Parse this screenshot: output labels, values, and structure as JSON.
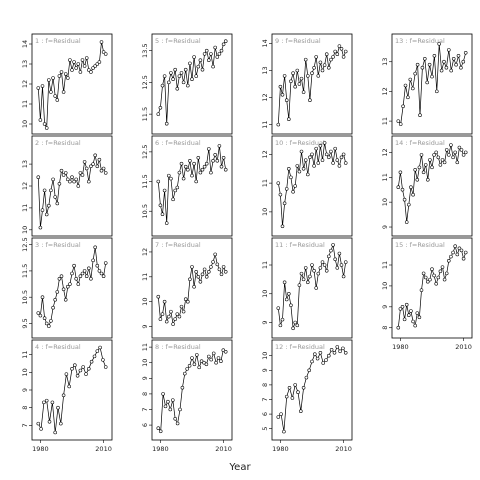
{
  "chart_data": {
    "type": "line",
    "xlabel": "Year",
    "x_ticks": [
      1980,
      2010
    ],
    "x_range": [
      1976,
      2014
    ],
    "strip_label": "f=Residual",
    "layout": {
      "rows": 4,
      "columns": 4,
      "shared_x": true
    },
    "panels": [
      {
        "label": "1 : f=Residual",
        "yticks": [
          10,
          11,
          12,
          13,
          14
        ],
        "ylim": [
          9.7,
          14.3
        ],
        "values": [
          11.8,
          10.2,
          11.9,
          10.0,
          9.8,
          12.2,
          11.6,
          12.3,
          11.4,
          11.2,
          12.4,
          12.6,
          11.6,
          12.5,
          12.3,
          13.2,
          12.7,
          13.1,
          12.8,
          13.0,
          12.6,
          13.2,
          12.9,
          13.3,
          12.7,
          12.6,
          12.8,
          12.9,
          13.0,
          13.1,
          14.1,
          13.6,
          13.5
        ]
      },
      {
        "label": "2 : f=Residual",
        "yticks": [
          10,
          11,
          12,
          13
        ],
        "ylim": [
          9.9,
          14.1
        ],
        "values": [
          12.4,
          10.1,
          10.9,
          11.8,
          10.7,
          11.1,
          11.8,
          12.3,
          11.5,
          11.2,
          12.1,
          12.7,
          12.5,
          12.6,
          12.3,
          12.2,
          12.4,
          12.2,
          12.3,
          12.0,
          12.6,
          12.5,
          13.1,
          12.8,
          12.2,
          12.9,
          13.0,
          13.4,
          12.9,
          13.2,
          12.7,
          12.8,
          12.6
        ]
      },
      {
        "label": "3 : f=Residual",
        "yticks": [
          9.5,
          10.5,
          11.5,
          12.5
        ],
        "ylim": [
          9.1,
          12.6
        ],
        "values": [
          9.9,
          9.8,
          10.5,
          9.7,
          9.5,
          9.4,
          9.6,
          10.1,
          10.4,
          10.7,
          11.2,
          11.3,
          10.8,
          10.4,
          10.9,
          11.0,
          11.4,
          11.7,
          11.2,
          11.0,
          11.3,
          11.4,
          11.5,
          11.3,
          11.6,
          11.2,
          11.9,
          12.4,
          11.7,
          11.5,
          11.4,
          11.3,
          11.8
        ]
      },
      {
        "label": "4 : f=Residual",
        "yticks": [
          7,
          8,
          9,
          10,
          11
        ],
        "ylim": [
          6.4,
          11.6
        ],
        "values": [
          7.1,
          6.8,
          8.3,
          8.4,
          7.2,
          8.3,
          6.6,
          8.0,
          7.1,
          8.7,
          9.9,
          9.2,
          10.2,
          10.4,
          9.8,
          10.1,
          10.3,
          9.9,
          10.2,
          10.6,
          10.9,
          11.2,
          11.4,
          10.7,
          10.3
        ]
      },
      {
        "label": "5 : f=Residual",
        "yticks": [
          11.5,
          12.5,
          13.5
        ],
        "ylim": [
          11.0,
          13.9
        ],
        "values": [
          11.5,
          11.7,
          12.4,
          12.7,
          11.2,
          12.5,
          12.8,
          12.6,
          12.9,
          12.3,
          12.7,
          12.8,
          12.5,
          12.9,
          12.4,
          13.1,
          12.6,
          13.3,
          12.7,
          13.0,
          13.2,
          12.9,
          13.4,
          13.5,
          13.2,
          13.4,
          13.0,
          13.6,
          13.3,
          13.4,
          13.5,
          13.7,
          13.8
        ]
      },
      {
        "label": "6 : f=Residual",
        "yticks": [
          10.5,
          11.5,
          12.5
        ],
        "ylim": [
          9.8,
          12.9
        ],
        "values": [
          11.5,
          10.7,
          10.4,
          11.2,
          10.1,
          11.7,
          11.6,
          10.9,
          11.2,
          11.3,
          11.8,
          12.1,
          11.6,
          12.0,
          11.9,
          12.2,
          11.7,
          12.1,
          11.5,
          12.3,
          11.8,
          11.9,
          12.0,
          12.1,
          12.6,
          11.8,
          12.2,
          12.4,
          12.2,
          12.7,
          12.0,
          12.3,
          11.9
        ]
      },
      {
        "label": "7 : f=Residual",
        "yticks": [
          9.0,
          10.0,
          11.0,
          12.0
        ],
        "ylim": [
          8.7,
          12.4
        ],
        "values": [
          10.2,
          9.3,
          9.5,
          10.0,
          9.2,
          9.4,
          9.6,
          9.1,
          9.3,
          9.5,
          9.4,
          9.8,
          9.6,
          10.1,
          10.0,
          10.9,
          11.4,
          10.6,
          11.2,
          11.0,
          10.8,
          11.1,
          11.3,
          11.0,
          11.2,
          11.4,
          11.6,
          11.9,
          11.5,
          11.3,
          11.1,
          11.4,
          11.2
        ]
      },
      {
        "label": "8 : f=Residual",
        "yticks": [
          6,
          7,
          8,
          9,
          10,
          11
        ],
        "ylim": [
          5.3,
          11.2
        ],
        "values": [
          5.8,
          5.6,
          8.0,
          7.2,
          7.5,
          7.0,
          7.6,
          6.4,
          6.1,
          7.0,
          8.4,
          9.3,
          9.6,
          9.8,
          10.3,
          9.9,
          10.5,
          9.7,
          10.1,
          10.0,
          9.9,
          10.4,
          10.2,
          10.6,
          10.0,
          10.3,
          10.1,
          10.8,
          10.7
        ]
      },
      {
        "label": "9 : f=Residual",
        "yticks": [
          11.0,
          12.0,
          13.0,
          14.0
        ],
        "ylim": [
          10.8,
          14.2
        ],
        "values": [
          11.0,
          12.4,
          12.1,
          12.8,
          11.9,
          11.2,
          12.6,
          12.9,
          12.4,
          13.0,
          12.5,
          12.7,
          12.2,
          13.4,
          12.8,
          11.9,
          12.9,
          13.1,
          13.5,
          12.8,
          13.3,
          13.0,
          13.2,
          13.6,
          13.1,
          13.4,
          13.5,
          13.7,
          13.6,
          13.9,
          13.8,
          13.5,
          13.7
        ]
      },
      {
        "label": "10 : f=Residual",
        "yticks": [
          10.0,
          11.0,
          12.0
        ],
        "ylim": [
          9.3,
          12.5
        ],
        "values": [
          11.0,
          10.6,
          9.5,
          10.3,
          10.8,
          11.5,
          11.2,
          10.7,
          10.9,
          11.6,
          11.4,
          12.1,
          11.5,
          11.8,
          11.3,
          11.9,
          12.0,
          11.6,
          12.2,
          11.7,
          12.3,
          11.8,
          12.4,
          12.0,
          11.9,
          12.1,
          11.7,
          12.2,
          11.8,
          11.6,
          11.9,
          12.0,
          11.7
        ]
      },
      {
        "label": "11 : f=Residual",
        "yticks": [
          9.0,
          10.0,
          11.0
        ],
        "ylim": [
          8.6,
          11.8
        ],
        "values": [
          9.5,
          8.9,
          9.1,
          10.4,
          9.8,
          10.0,
          9.6,
          8.8,
          9.0,
          8.9,
          10.3,
          10.7,
          10.5,
          10.9,
          10.4,
          10.6,
          11.0,
          10.8,
          10.2,
          10.7,
          10.9,
          11.1,
          11.0,
          10.8,
          11.3,
          11.5,
          11.7,
          11.2,
          10.9,
          11.4,
          11.0,
          10.6,
          11.1
        ]
      },
      {
        "label": "12 : f=Residual",
        "yticks": [
          5,
          6,
          7,
          8,
          9,
          10
        ],
        "ylim": [
          4.5,
          10.8
        ],
        "values": [
          5.8,
          6.0,
          4.8,
          7.2,
          7.8,
          7.1,
          8.0,
          7.5,
          6.2,
          7.8,
          8.5,
          9.0,
          9.6,
          10.1,
          9.8,
          10.2,
          9.5,
          9.7,
          10.0,
          10.4,
          10.2,
          10.6,
          10.3,
          10.5,
          10.2
        ]
      },
      {
        "label": "13 : f=Residual",
        "yticks": [
          11.0,
          12.0,
          13.0
        ],
        "ylim": [
          10.7,
          13.8
        ],
        "values": [
          11.0,
          10.9,
          11.5,
          12.2,
          11.8,
          12.4,
          12.1,
          12.6,
          12.9,
          11.2,
          12.8,
          13.1,
          12.3,
          12.9,
          12.5,
          13.2,
          12.0,
          13.6,
          12.7,
          13.0,
          12.8,
          13.4,
          12.7,
          13.1,
          12.9,
          13.2,
          12.8,
          13.0,
          13.3
        ]
      },
      {
        "label": "14 : f=Residual",
        "yticks": [
          9.0,
          10.0,
          11.0,
          12.0
        ],
        "ylim": [
          8.8,
          12.5
        ],
        "values": [
          10.6,
          11.2,
          10.5,
          10.1,
          9.2,
          9.9,
          10.6,
          10.3,
          11.3,
          10.9,
          11.4,
          11.9,
          11.2,
          11.5,
          10.9,
          11.7,
          11.4,
          11.9,
          12.0,
          11.8,
          11.5,
          11.7,
          11.6,
          12.1,
          11.9,
          12.3,
          11.8,
          12.0,
          11.6,
          12.2,
          12.1,
          11.9,
          12.0
        ]
      },
      {
        "label": "15 : f=Residual",
        "yticks": [
          8.0,
          9.0,
          10.0,
          11.0
        ],
        "ylim": [
          7.7,
          12.1
        ],
        "values": [
          8.0,
          8.9,
          9.0,
          8.4,
          9.1,
          8.6,
          8.8,
          8.3,
          8.1,
          8.7,
          8.5,
          9.8,
          10.6,
          10.4,
          10.2,
          10.3,
          10.8,
          10.5,
          10.1,
          10.4,
          10.7,
          10.9,
          10.3,
          10.6,
          11.2,
          11.4,
          11.6,
          11.9,
          11.5,
          11.8,
          11.7,
          11.3,
          11.6
        ]
      }
    ]
  }
}
